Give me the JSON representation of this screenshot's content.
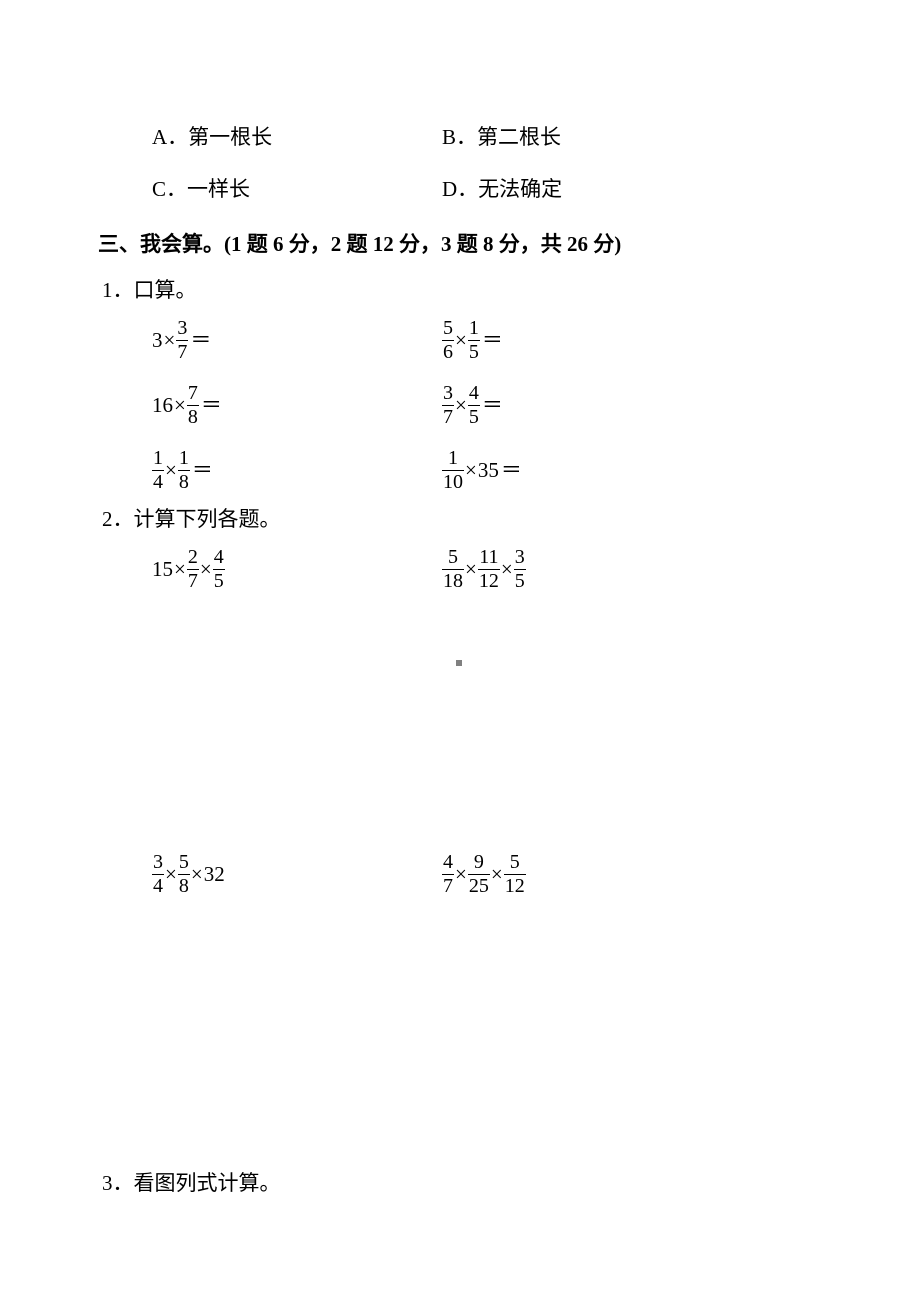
{
  "colors": {
    "text": "#000000",
    "background": "#ffffff",
    "marker": "#808080"
  },
  "typography": {
    "body_font": "SimSun",
    "math_font": "Times New Roman",
    "body_size_pt": 16,
    "math_size_pt": 16
  },
  "choices": {
    "rowA": {
      "leftLabel": "A．",
      "leftText": "第一根长",
      "rightLabel": "B．",
      "rightText": "第二根长"
    },
    "rowB": {
      "leftLabel": "C．",
      "leftText": "一样长",
      "rightLabel": "D．",
      "rightText": "无法确定"
    }
  },
  "section3": {
    "heading_prefix": "三、我会算。",
    "heading_score": "(1 题 6 分，2 题 12 分，3 题 8 分，共 26 分)"
  },
  "sub1": {
    "label": "1．口算。",
    "items": [
      {
        "left": {
          "a_whole": "3",
          "a_num": null,
          "a_den": null,
          "b_num": "3",
          "b_den": "7",
          "tail": "＝"
        },
        "right": {
          "a_num": "5",
          "a_den": "6",
          "b_num": "1",
          "b_den": "5",
          "tail": "＝"
        }
      },
      {
        "left": {
          "a_whole": "16",
          "a_num": null,
          "a_den": null,
          "b_num": "7",
          "b_den": "8",
          "tail": "＝"
        },
        "right": {
          "a_num": "3",
          "a_den": "7",
          "b_num": "4",
          "b_den": "5",
          "tail": "＝"
        }
      },
      {
        "left": {
          "a_num": "1",
          "a_den": "4",
          "b_num": "1",
          "b_den": "8",
          "tail": "＝"
        },
        "right": {
          "a_num": "1",
          "a_den": "10",
          "b_whole": "35",
          "tail": "＝"
        }
      }
    ]
  },
  "sub2": {
    "label": "2．计算下列各题。",
    "rows": [
      {
        "left": {
          "p1_whole": "15",
          "p2_num": "2",
          "p2_den": "7",
          "p3_num": "4",
          "p3_den": "5"
        },
        "right": {
          "p1_num": "5",
          "p1_den": "18",
          "p2_num": "11",
          "p2_den": "12",
          "p3_num": "3",
          "p3_den": "5"
        }
      },
      {
        "left": {
          "p1_num": "3",
          "p1_den": "4",
          "p2_num": "5",
          "p2_den": "8",
          "p3_whole": "32"
        },
        "right": {
          "p1_num": "4",
          "p1_den": "7",
          "p2_num": "9",
          "p2_den": "25",
          "p3_num": "5",
          "p3_den": "12"
        }
      }
    ]
  },
  "sub3": {
    "label": "3．看图列式计算。"
  }
}
